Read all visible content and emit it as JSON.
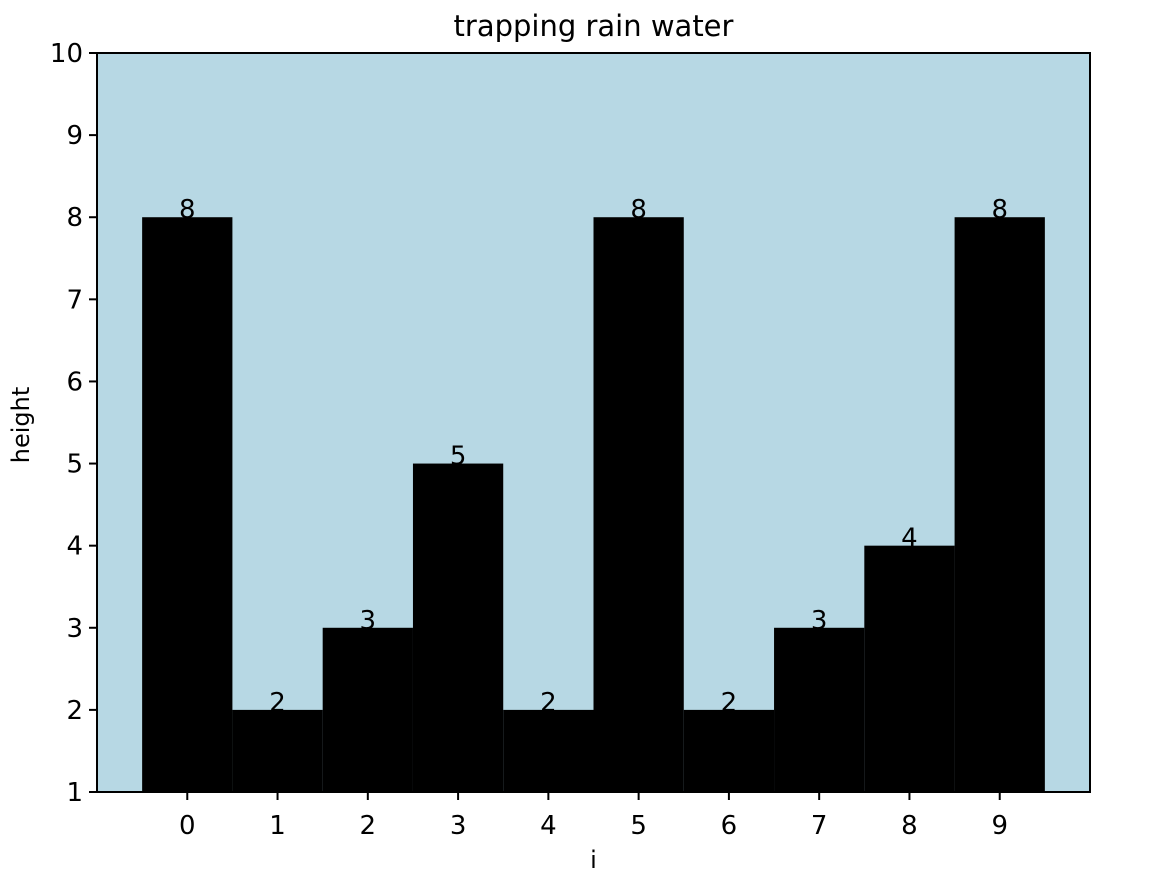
{
  "chart_data": {
    "type": "bar",
    "title": "trapping rain water",
    "xlabel": "i",
    "ylabel": "height",
    "categories": [
      "0",
      "1",
      "2",
      "3",
      "4",
      "5",
      "6",
      "7",
      "8",
      "9"
    ],
    "values": [
      8,
      2,
      3,
      5,
      2,
      8,
      2,
      3,
      4,
      8
    ],
    "data_labels": [
      "8",
      "2",
      "3",
      "5",
      "2",
      "8",
      "2",
      "3",
      "4",
      "8"
    ],
    "ylim": [
      1,
      10
    ],
    "yticks": [
      "1",
      "2",
      "3",
      "4",
      "5",
      "6",
      "7",
      "8",
      "9",
      "10"
    ],
    "grid": false,
    "colors": {
      "plot_background": "#b7d8e4",
      "bar": "#000000",
      "axes": "#000000"
    }
  }
}
